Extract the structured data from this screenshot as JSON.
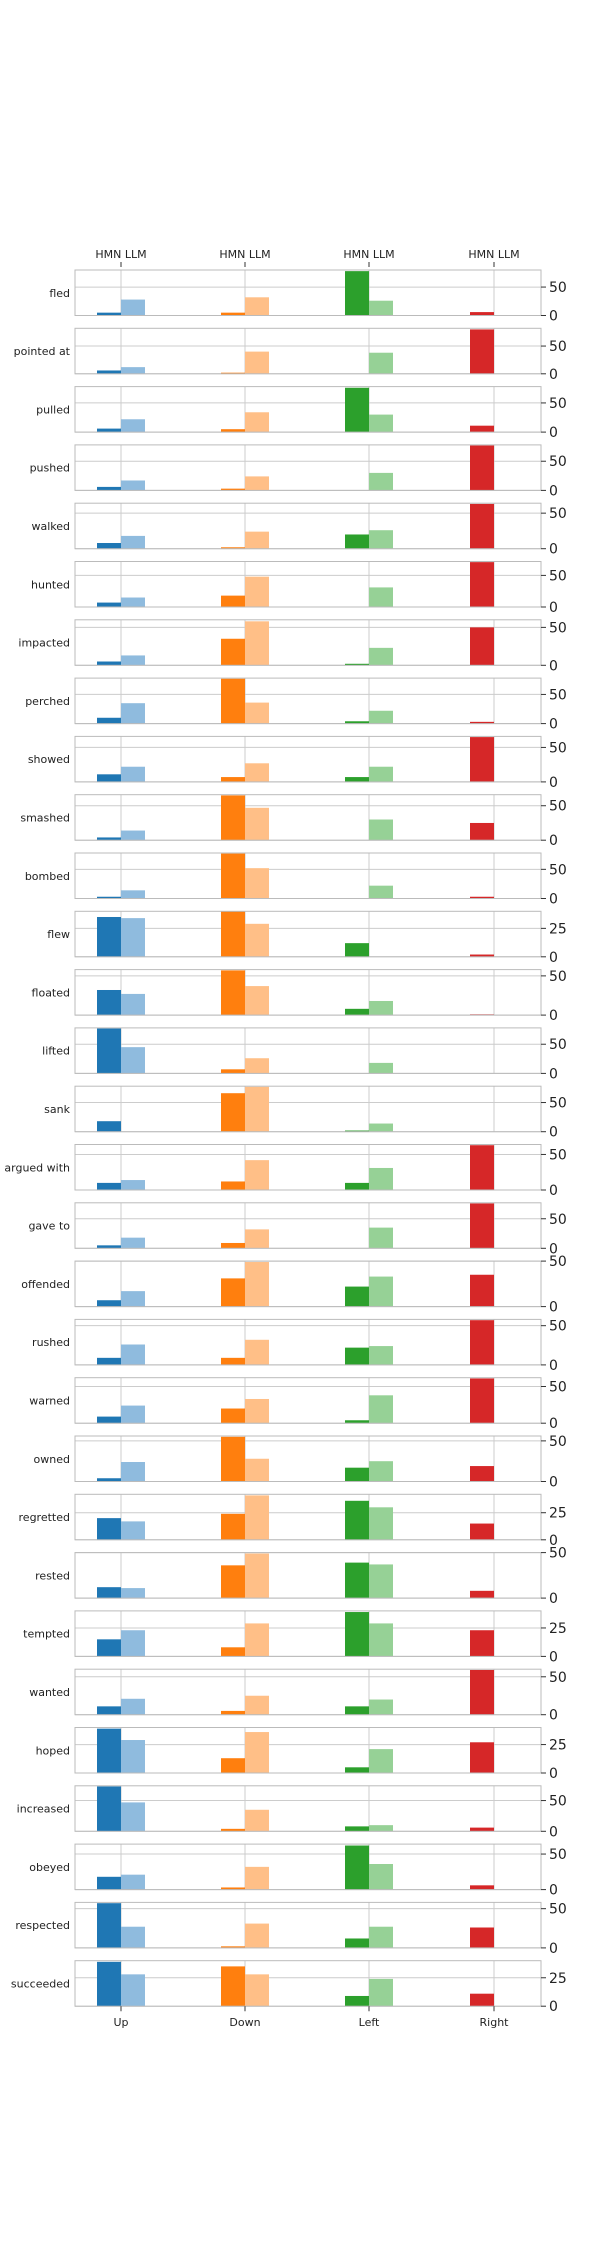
{
  "chart_data": {
    "type": "bar",
    "categories": [
      "Up",
      "Down",
      "Left",
      "Right"
    ],
    "top_labels": [
      "HMN LLM",
      "HMN LLM",
      "HMN LLM",
      "HMN LLM"
    ],
    "series": [
      {
        "name": "HMN"
      },
      {
        "name": "LLM"
      }
    ],
    "colors": {
      "HMN": [
        "#1f77b4",
        "#ff7f0e",
        "#2ca02c",
        "#d62728"
      ],
      "LLM": [
        "#8fbbde",
        "#ffbf87",
        "#96d196",
        "#eb9393"
      ]
    },
    "grid": true,
    "panels": [
      {
        "verb": "fled",
        "ylim": [
          0,
          80
        ],
        "yticks": [
          "0",
          "50"
        ],
        "hmn": [
          5,
          5,
          78,
          6
        ],
        "llm": [
          28,
          32,
          26,
          0
        ]
      },
      {
        "verb": "pointed at",
        "ylim": [
          0,
          82
        ],
        "yticks": [
          "0",
          "50"
        ],
        "hmn": [
          6,
          2,
          0,
          80
        ],
        "llm": [
          12,
          40,
          38,
          0
        ]
      },
      {
        "verb": "pulled",
        "ylim": [
          0,
          78
        ],
        "yticks": [
          "0",
          "50"
        ],
        "hmn": [
          6,
          5,
          76,
          11
        ],
        "llm": [
          22,
          34,
          30,
          0
        ]
      },
      {
        "verb": "pushed",
        "ylim": [
          0,
          78
        ],
        "yticks": [
          "0",
          "50"
        ],
        "hmn": [
          6,
          3,
          0,
          77
        ],
        "llm": [
          17,
          24,
          30,
          0
        ]
      },
      {
        "verb": "walked",
        "ylim": [
          0,
          64
        ],
        "yticks": [
          "0",
          "50"
        ],
        "hmn": [
          8,
          2,
          20,
          63
        ],
        "llm": [
          18,
          24,
          26,
          0
        ]
      },
      {
        "verb": "hunted",
        "ylim": [
          0,
          72
        ],
        "yticks": [
          "0",
          "50"
        ],
        "hmn": [
          7,
          18,
          0,
          71
        ],
        "llm": [
          15,
          48,
          31,
          0
        ]
      },
      {
        "verb": "impacted",
        "ylim": [
          0,
          60
        ],
        "yticks": [
          "0",
          "50"
        ],
        "hmn": [
          5,
          35,
          2,
          50
        ],
        "llm": [
          13,
          58,
          23,
          0
        ]
      },
      {
        "verb": "perched",
        "ylim": [
          0,
          78
        ],
        "yticks": [
          "0",
          "50"
        ],
        "hmn": [
          10,
          77,
          4,
          3
        ],
        "llm": [
          35,
          36,
          22,
          0
        ]
      },
      {
        "verb": "showed",
        "ylim": [
          0,
          66
        ],
        "yticks": [
          "0",
          "50"
        ],
        "hmn": [
          11,
          7,
          7,
          65
        ],
        "llm": [
          22,
          27,
          22,
          0
        ]
      },
      {
        "verb": "smashed",
        "ylim": [
          0,
          66
        ],
        "yticks": [
          "0",
          "50"
        ],
        "hmn": [
          4,
          65,
          0,
          25
        ],
        "llm": [
          14,
          47,
          30,
          0
        ]
      },
      {
        "verb": "bombed",
        "ylim": [
          0,
          78
        ],
        "yticks": [
          "0",
          "50"
        ],
        "hmn": [
          3,
          77,
          0,
          3
        ],
        "llm": [
          14,
          52,
          22,
          0
        ]
      },
      {
        "verb": "flew",
        "ylim": [
          0,
          40
        ],
        "yticks": [
          "0",
          "25"
        ],
        "hmn": [
          35,
          40,
          12,
          2
        ],
        "llm": [
          34,
          29,
          0,
          0
        ]
      },
      {
        "verb": "floated",
        "ylim": [
          0,
          58
        ],
        "yticks": [
          "0",
          "50"
        ],
        "hmn": [
          32,
          57,
          8,
          1
        ],
        "llm": [
          27,
          37,
          18,
          0
        ]
      },
      {
        "verb": "lifted",
        "ylim": [
          0,
          78
        ],
        "yticks": [
          "0",
          "50"
        ],
        "hmn": [
          77,
          7,
          0,
          0
        ],
        "llm": [
          45,
          26,
          18,
          0
        ]
      },
      {
        "verb": "sank",
        "ylim": [
          0,
          78
        ],
        "yticks": [
          "0",
          "50"
        ],
        "hmn": [
          18,
          66,
          2,
          0
        ],
        "llm": [
          0,
          77,
          14,
          0
        ]
      },
      {
        "verb": "argued with",
        "ylim": [
          0,
          64
        ],
        "yticks": [
          "0",
          "50"
        ],
        "hmn": [
          10,
          12,
          10,
          63
        ],
        "llm": [
          14,
          42,
          31,
          0
        ]
      },
      {
        "verb": "gave to",
        "ylim": [
          0,
          77
        ],
        "yticks": [
          "0",
          "50"
        ],
        "hmn": [
          5,
          9,
          0,
          76
        ],
        "llm": [
          18,
          32,
          35,
          0
        ]
      },
      {
        "verb": "offended",
        "ylim": [
          0,
          50
        ],
        "yticks": [
          "0",
          "50"
        ],
        "hmn": [
          7,
          31,
          22,
          35
        ],
        "llm": [
          17,
          49,
          33,
          0
        ]
      },
      {
        "verb": "rushed",
        "ylim": [
          0,
          58
        ],
        "yticks": [
          "0",
          "50"
        ],
        "hmn": [
          9,
          9,
          22,
          57
        ],
        "llm": [
          26,
          32,
          24,
          0
        ]
      },
      {
        "verb": "warned",
        "ylim": [
          0,
          62
        ],
        "yticks": [
          "0",
          "50"
        ],
        "hmn": [
          9,
          20,
          4,
          61
        ],
        "llm": [
          24,
          33,
          38,
          0
        ]
      },
      {
        "verb": "owned",
        "ylim": [
          0,
          56
        ],
        "yticks": [
          "0",
          "50"
        ],
        "hmn": [
          4,
          55,
          17,
          19
        ],
        "llm": [
          24,
          28,
          25,
          0
        ]
      },
      {
        "verb": "regretted",
        "ylim": [
          0,
          42
        ],
        "yticks": [
          "0",
          "25"
        ],
        "hmn": [
          20,
          24,
          36,
          15
        ],
        "llm": [
          17,
          41,
          30,
          0
        ]
      },
      {
        "verb": "rested",
        "ylim": [
          0,
          50
        ],
        "yticks": [
          "0",
          "50"
        ],
        "hmn": [
          12,
          36,
          39,
          8
        ],
        "llm": [
          11,
          49,
          37,
          0
        ]
      },
      {
        "verb": "tempted",
        "ylim": [
          0,
          40
        ],
        "yticks": [
          "0",
          "25"
        ],
        "hmn": [
          15,
          8,
          39,
          23
        ],
        "llm": [
          23,
          29,
          29,
          0
        ]
      },
      {
        "verb": "wanted",
        "ylim": [
          0,
          60
        ],
        "yticks": [
          "0",
          "50"
        ],
        "hmn": [
          11,
          5,
          11,
          59
        ],
        "llm": [
          21,
          25,
          20,
          0
        ]
      },
      {
        "verb": "hoped",
        "ylim": [
          0,
          40
        ],
        "yticks": [
          "0",
          "25"
        ],
        "hmn": [
          39,
          13,
          5,
          27
        ],
        "llm": [
          29,
          36,
          21,
          0
        ]
      },
      {
        "verb": "increased",
        "ylim": [
          0,
          74
        ],
        "yticks": [
          "0",
          "50"
        ],
        "hmn": [
          73,
          4,
          8,
          6
        ],
        "llm": [
          47,
          35,
          10,
          0
        ]
      },
      {
        "verb": "obeyed",
        "ylim": [
          0,
          64
        ],
        "yticks": [
          "0",
          "50"
        ],
        "hmn": [
          18,
          3,
          62,
          6
        ],
        "llm": [
          21,
          32,
          36,
          0
        ]
      },
      {
        "verb": "respected",
        "ylim": [
          0,
          58
        ],
        "yticks": [
          "0",
          "50"
        ],
        "hmn": [
          57,
          2,
          12,
          26
        ],
        "llm": [
          27,
          31,
          27,
          0
        ]
      },
      {
        "verb": "succeeded",
        "ylim": [
          0,
          40
        ],
        "yticks": [
          "0",
          "25"
        ],
        "hmn": [
          39,
          35,
          9,
          11
        ],
        "llm": [
          28,
          28,
          24,
          0
        ]
      }
    ]
  }
}
